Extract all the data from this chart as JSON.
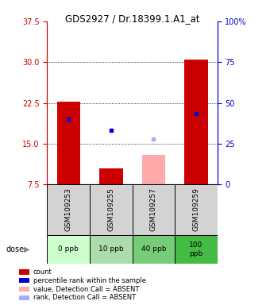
{
  "title": "GDS2927 / Dr.18399.1.A1_at",
  "samples": [
    "GSM109253",
    "GSM109255",
    "GSM109257",
    "GSM109259"
  ],
  "doses": [
    "0 ppb",
    "10 ppb",
    "40 ppb",
    "100\nppb"
  ],
  "bar_heights_red": [
    22.7,
    10.5,
    null,
    30.5
  ],
  "bar_heights_pink": [
    null,
    null,
    13.0,
    null
  ],
  "blue_marker_x": [
    0,
    1,
    null,
    3
  ],
  "blue_marker_y": [
    19.5,
    17.5,
    null,
    20.5
  ],
  "lightblue_marker_x": [
    null,
    null,
    2,
    null
  ],
  "lightblue_marker_y": [
    null,
    null,
    15.8,
    null
  ],
  "left_yticks": [
    7.5,
    15.0,
    22.5,
    30.0,
    37.5
  ],
  "right_yticks": [
    0,
    25,
    50,
    75,
    100
  ],
  "right_ytick_labels": [
    "0",
    "25",
    "50",
    "75",
    "100%"
  ],
  "ylim_left": [
    7.5,
    37.5
  ],
  "ylim_right": [
    0,
    100
  ],
  "bar_width": 0.55,
  "dose_colors": [
    "#ccffcc",
    "#aaddaa",
    "#77cc77",
    "#44bb44"
  ],
  "legend_items": [
    {
      "color": "#cc0000",
      "label": "count"
    },
    {
      "color": "#0000cc",
      "label": "percentile rank within the sample"
    },
    {
      "color": "#ffaaaa",
      "label": "value, Detection Call = ABSENT"
    },
    {
      "color": "#aaaaff",
      "label": "rank, Detection Call = ABSENT"
    }
  ]
}
